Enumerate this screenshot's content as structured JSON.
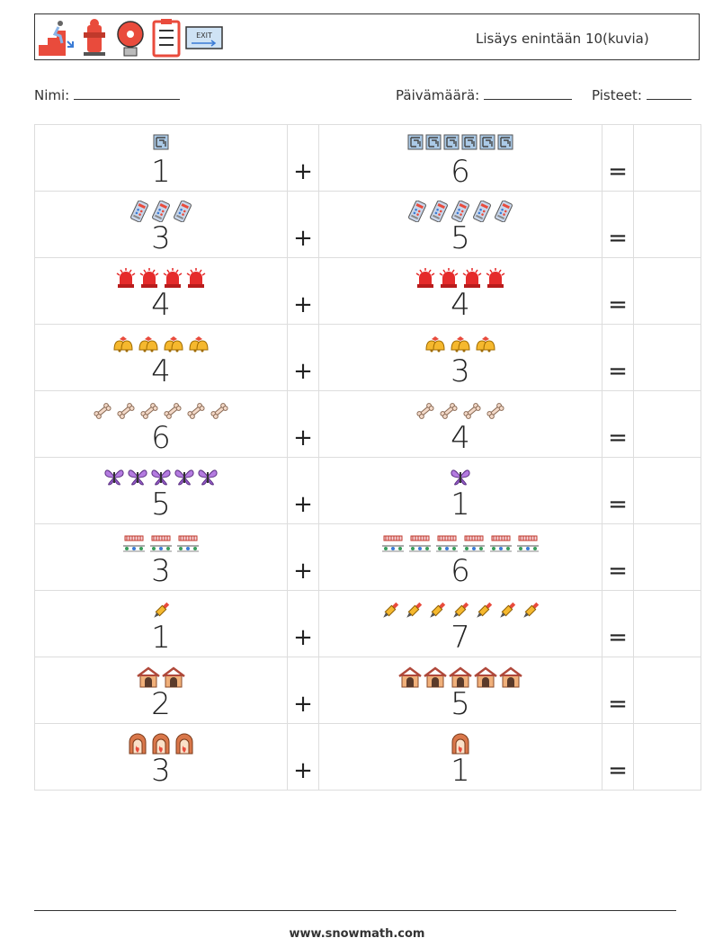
{
  "header": {
    "title": "Lisäys enintään 10(kuvia)",
    "icons": [
      "fire-escape-stairs-icon",
      "fire-hydrant-icon",
      "fire-alarm-bell-icon",
      "checklist-clipboard-icon",
      "exit-sign-icon"
    ]
  },
  "meta": {
    "name_label": "Nimi:",
    "date_label": "Päivämäärä:",
    "score_label": "Pisteet:"
  },
  "operators": {
    "plus": "+",
    "equals": "="
  },
  "rows": [
    {
      "a": 1,
      "b": 6,
      "a_icon": "maze-icon",
      "b_icon": "maze-icon",
      "a_text": "1",
      "b_text": "6"
    },
    {
      "a": 3,
      "b": 5,
      "a_icon": "control-panel-icon",
      "b_icon": "control-panel-icon",
      "a_text": "3",
      "b_text": "5"
    },
    {
      "a": 4,
      "b": 4,
      "a_icon": "siren-light-icon",
      "b_icon": "siren-light-icon",
      "a_text": "4",
      "b_text": "4"
    },
    {
      "a": 4,
      "b": 3,
      "a_icon": "alarm-bells-icon",
      "b_icon": "alarm-bells-icon",
      "a_text": "4",
      "b_text": "3"
    },
    {
      "a": 6,
      "b": 4,
      "a_icon": "bone-icon",
      "b_icon": "bone-icon",
      "a_text": "6",
      "b_text": "4"
    },
    {
      "a": 5,
      "b": 1,
      "a_icon": "butterfly-icon",
      "b_icon": "butterfly-icon",
      "a_text": "5",
      "b_text": "1"
    },
    {
      "a": 3,
      "b": 6,
      "a_icon": "fence-garden-icon",
      "b_icon": "fence-garden-icon",
      "a_text": "3",
      "b_text": "6"
    },
    {
      "a": 1,
      "b": 7,
      "a_icon": "dropper-icon",
      "b_icon": "dropper-icon",
      "a_text": "1",
      "b_text": "7"
    },
    {
      "a": 2,
      "b": 5,
      "a_icon": "house-icon",
      "b_icon": "house-icon",
      "a_text": "2",
      "b_text": "5"
    },
    {
      "a": 3,
      "b": 1,
      "a_icon": "fireplace-icon",
      "b_icon": "fireplace-icon",
      "a_text": "3",
      "b_text": "1"
    }
  ],
  "footer": {
    "website": "www.snowmath.com"
  }
}
